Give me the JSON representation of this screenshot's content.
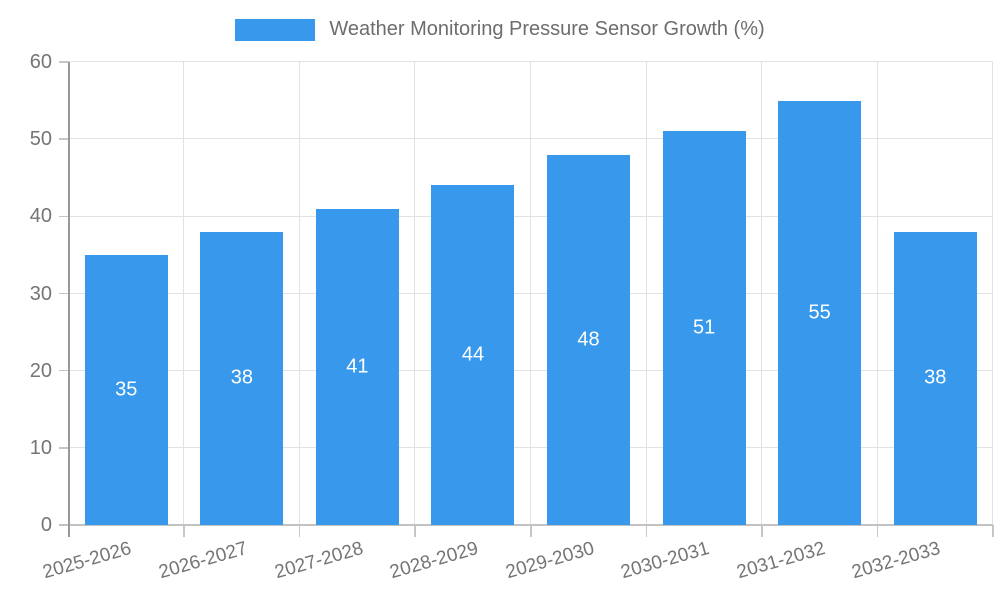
{
  "chart_data": {
    "type": "bar",
    "title": "Weather Monitoring Pressure Sensor Growth (%)",
    "categories": [
      "2025-2026",
      "2026-2027",
      "2027-2028",
      "2028-2029",
      "2029-2030",
      "2030-2031",
      "2031-2032",
      "2032-2033"
    ],
    "values": [
      35,
      38,
      41,
      44,
      48,
      51,
      55,
      38
    ],
    "value_labels": [
      "35",
      "38",
      "41",
      "44",
      "48",
      "51",
      "55",
      "38"
    ],
    "value_labels_inside": true,
    "xlabel": "",
    "ylabel": "",
    "ylim": [
      0,
      60
    ],
    "ytick_step": 10,
    "ytick_labels": [
      "0",
      "10",
      "20",
      "30",
      "40",
      "50",
      "60"
    ],
    "grid": "horizontal and vertical light gray gridlines",
    "legend_position": "top-center",
    "colors": {
      "bar": "#3899ec",
      "value_label": "#ffffff",
      "gridline": "#e2e2e2",
      "axis_line": "#989898",
      "tick_label": "#757575",
      "legend_text": "#6d6d6d"
    }
  }
}
